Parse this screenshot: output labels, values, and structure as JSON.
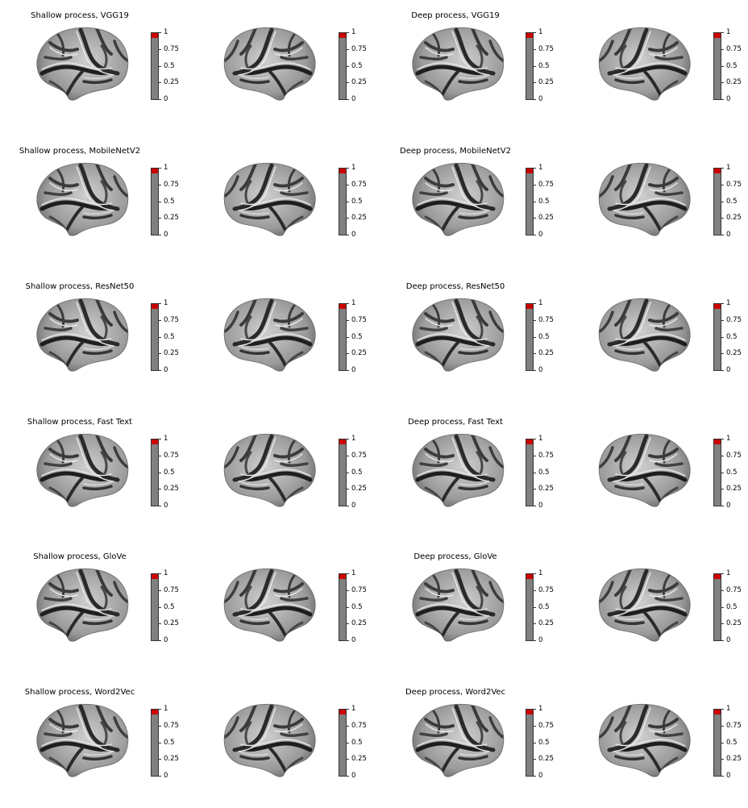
{
  "colors": {
    "colorbar_fill": "#808080",
    "colorbar_top": "#cc0000",
    "surface_light": "#e6e6e6",
    "surface_dark": "#2a2a2a"
  },
  "colorbar_ticks": [
    "1",
    "0.75",
    "0.5",
    "0.25",
    "0"
  ],
  "colorbar_tick_values": [
    1,
    0.75,
    0.5,
    0.25,
    0
  ],
  "colorbar_top_fraction": 0.07,
  "rows": [
    {
      "shallow_title": "Shallow process, VGG19",
      "deep_title": "Deep process, VGG19"
    },
    {
      "shallow_title": "Shallow process, MobileNetV2",
      "deep_title": "Deep process, MobileNetV2"
    },
    {
      "shallow_title": "Shallow process, ResNet50",
      "deep_title": "Deep process, ResNet50"
    },
    {
      "shallow_title": "Shallow process, Fast Text",
      "deep_title": "Deep process, Fast Text"
    },
    {
      "shallow_title": "Shallow process, GloVe",
      "deep_title": "Deep process, GloVe"
    },
    {
      "shallow_title": "Shallow process, Word2Vec",
      "deep_title": "Deep process, Word2Vec"
    }
  ]
}
